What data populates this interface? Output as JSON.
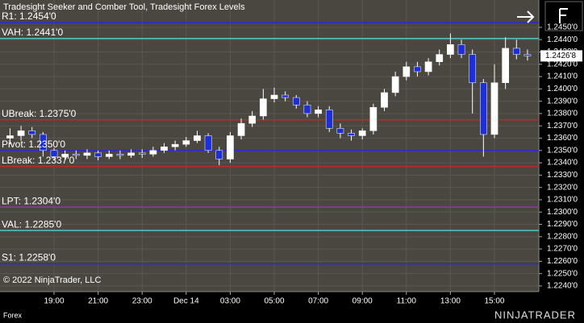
{
  "title": "Tradesight Seeker and Comber Tool, Tradesight Forex Levels",
  "copyright": "© 2022 NinjaTrader, LLC",
  "instrument": "Forex",
  "brand": "NINJATRADER",
  "chart_data": {
    "type": "candlestick",
    "open": [
      1.236,
      1.2362,
      1.2366,
      1.2363,
      1.235,
      1.2345,
      1.2347,
      1.2346,
      1.2348,
      1.2345,
      1.2347,
      1.2346,
      1.2348,
      1.2347,
      1.235,
      1.2353,
      1.2355,
      1.2358,
      1.2362,
      1.235,
      1.2343,
      1.2362,
      1.2372,
      1.2378,
      1.2392,
      1.2395,
      1.2393,
      1.2387,
      1.238,
      1.2383,
      1.2368,
      1.2364,
      1.2362,
      1.2366,
      1.2385,
      1.2397,
      1.241,
      1.2418,
      1.2414,
      1.2422,
      1.2428,
      1.2436,
      1.2428,
      1.2405,
      1.2363,
      1.2405,
      1.2433,
      1.2428
    ],
    "high": [
      1.2368,
      1.237,
      1.2369,
      1.2365,
      1.2352,
      1.235,
      1.235,
      1.2351,
      1.235,
      1.235,
      1.235,
      1.2351,
      1.2351,
      1.2353,
      1.2356,
      1.2358,
      1.2361,
      1.2366,
      1.2364,
      1.2353,
      1.2365,
      1.2376,
      1.2382,
      1.24,
      1.2401,
      1.2398,
      1.2395,
      1.239,
      1.2386,
      1.2386,
      1.2372,
      1.2367,
      1.2368,
      1.2388,
      1.24,
      1.2414,
      1.2422,
      1.2422,
      1.2425,
      1.2432,
      1.2445,
      1.244,
      1.2432,
      1.2408,
      1.242,
      1.2442,
      1.244,
      1.2432
    ],
    "low": [
      1.2355,
      1.2358,
      1.236,
      1.2345,
      1.2342,
      1.2342,
      1.2343,
      1.2343,
      1.2342,
      1.2343,
      1.2343,
      1.2344,
      1.2344,
      1.2345,
      1.2348,
      1.235,
      1.2353,
      1.2356,
      1.2348,
      1.2338,
      1.234,
      1.2359,
      1.2369,
      1.2375,
      1.2389,
      1.239,
      1.2384,
      1.2377,
      1.2377,
      1.2365,
      1.236,
      1.2358,
      1.2359,
      1.2363,
      1.2382,
      1.2394,
      1.2407,
      1.241,
      1.2411,
      1.2419,
      1.2425,
      1.2425,
      1.238,
      1.2345,
      1.236,
      1.24,
      1.2424,
      1.2423
    ],
    "close": [
      1.2362,
      1.2366,
      1.2363,
      1.235,
      1.2345,
      1.2347,
      1.2346,
      1.2348,
      1.2345,
      1.2347,
      1.2346,
      1.2348,
      1.2347,
      1.235,
      1.2353,
      1.2355,
      1.2358,
      1.2362,
      1.235,
      1.2343,
      1.2362,
      1.2372,
      1.2378,
      1.2392,
      1.2395,
      1.2393,
      1.2387,
      1.238,
      1.2383,
      1.2368,
      1.2364,
      1.2362,
      1.2366,
      1.2385,
      1.2397,
      1.241,
      1.2418,
      1.2414,
      1.2422,
      1.2428,
      1.2436,
      1.2428,
      1.2405,
      1.2363,
      1.2405,
      1.2433,
      1.2428,
      1.24268
    ],
    "up_color": "#ffffff",
    "down_color": "#1e2fd8",
    "xlim": [
      -0.91,
      48.03
    ],
    "xticks": [
      {
        "value": 4,
        "label": "19:00"
      },
      {
        "value": 8,
        "label": "21:00"
      },
      {
        "value": 12,
        "label": "23:00"
      },
      {
        "value": 16,
        "label": "Dec 14"
      },
      {
        "value": 20,
        "label": "03:00"
      },
      {
        "value": 24,
        "label": "05:00"
      },
      {
        "value": 28,
        "label": "07:00"
      },
      {
        "value": 32,
        "label": "09:00"
      },
      {
        "value": 36,
        "label": "11:00"
      },
      {
        "value": 40,
        "label": "13:00"
      },
      {
        "value": 44,
        "label": "15:00"
      }
    ],
    "ylim": [
      1.22354,
      1.24722
    ],
    "yticks": [
      {
        "value": 1.224,
        "label": "1.2240'0"
      },
      {
        "value": 1.225,
        "label": "1.2250'0"
      },
      {
        "value": 1.226,
        "label": "1.2260'0"
      },
      {
        "value": 1.227,
        "label": "1.2270'0"
      },
      {
        "value": 1.228,
        "label": "1.2280'0"
      },
      {
        "value": 1.229,
        "label": "1.2290'0"
      },
      {
        "value": 1.23,
        "label": "1.2300'0"
      },
      {
        "value": 1.231,
        "label": "1.2310'0"
      },
      {
        "value": 1.232,
        "label": "1.2320'0"
      },
      {
        "value": 1.233,
        "label": "1.2330'0"
      },
      {
        "value": 1.234,
        "label": "1.2340'0"
      },
      {
        "value": 1.235,
        "label": "1.2350'0"
      },
      {
        "value": 1.236,
        "label": "1.2360'0"
      },
      {
        "value": 1.237,
        "label": "1.2370'0"
      },
      {
        "value": 1.238,
        "label": "1.2380'0"
      },
      {
        "value": 1.239,
        "label": "1.2390'0"
      },
      {
        "value": 1.24,
        "label": "1.2400'0"
      },
      {
        "value": 1.241,
        "label": "1.2410'0"
      },
      {
        "value": 1.242,
        "label": "1.2420'0"
      },
      {
        "value": 1.243,
        "label": "1.2430'0"
      },
      {
        "value": 1.244,
        "label": "1.2440'0"
      },
      {
        "value": 1.245,
        "label": "1.2450'0"
      }
    ],
    "grid": true,
    "last_price": {
      "value": 1.24268,
      "label": "1.2426'8"
    },
    "levels": [
      {
        "value": 1.2454,
        "label": "R1: 1.2454'0",
        "color": "#2a2ad0"
      },
      {
        "value": 1.2441,
        "label": "VAH: 1.2441'0",
        "color": "#4cc8c8"
      },
      {
        "value": 1.2375,
        "label": "UBreak: 1.2375'0",
        "color": "#c02828"
      },
      {
        "value": 1.235,
        "label": "Pivot: 1.2350'0",
        "color": "#2a2ad0"
      },
      {
        "value": 1.2337,
        "label": "LBreak: 1.2337'0",
        "color": "#c02828"
      },
      {
        "value": 1.2304,
        "label": "LPT: 1.2304'0",
        "color": "#8a3aa8"
      },
      {
        "value": 1.2285,
        "label": "VAL: 1.2285'0",
        "color": "#4cc8c8"
      },
      {
        "value": 1.2258,
        "label": "S1: 1.2258'0",
        "color": "#2a2ad0"
      }
    ]
  }
}
